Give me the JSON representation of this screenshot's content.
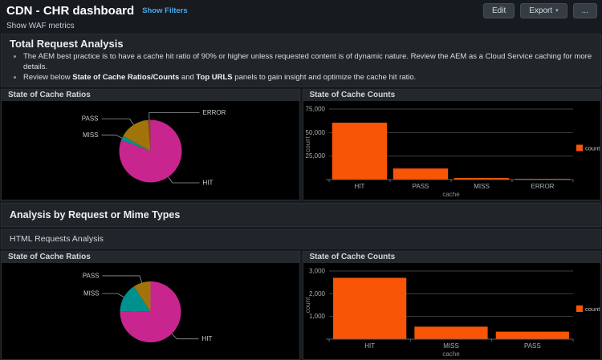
{
  "header": {
    "title": "CDN - CHR dashboard",
    "show_filters_label": "Show Filters",
    "waf_label": "Show WAF metrics",
    "buttons": {
      "edit": "Edit",
      "export": "Export",
      "more": "..."
    }
  },
  "sections": {
    "total_request": {
      "title": "Total Request Analysis",
      "bullets": [
        [
          {
            "text": "The AEM best practice is to have a cache hit ratio of 90% or higher unless requested content is of dynamic nature. Review the AEM as a Cloud Service caching for more details.",
            "bold": false
          }
        ],
        [
          {
            "text": "Review below ",
            "bold": false
          },
          {
            "text": "State of Cache Ratios/Counts",
            "bold": true
          },
          {
            "text": " and ",
            "bold": false
          },
          {
            "text": "Top URLS",
            "bold": true
          },
          {
            "text": " panels to gain insight and optimize the cache hit ratio.",
            "bold": false
          }
        ]
      ]
    },
    "mime_types": {
      "title": "Analysis by Request or Mime Types"
    },
    "html_requests": {
      "title": "HTML Requests Analysis"
    }
  },
  "panels": [
    {
      "title": "State of Cache Ratios"
    },
    {
      "title": "State of Cache Counts"
    },
    {
      "title": "State of Cache Ratios"
    },
    {
      "title": "State of Cache Counts"
    }
  ],
  "colors": {
    "bar_orange": "#f85506",
    "pie_hit_magenta": "#c9258f",
    "pie_miss_teal": "#00918e",
    "pie_pass_gold": "#a1730b",
    "pie_error_red": "#8f3e3e",
    "link_blue": "#4aa8e8"
  },
  "chart_data": [
    {
      "id": "pie1",
      "type": "pie",
      "title": "State of Cache Ratios",
      "labels": [
        "HIT",
        "MISS",
        "PASS",
        "ERROR"
      ],
      "values": [
        60500,
        1700,
        11800,
        900
      ],
      "colors": [
        "#c9258f",
        "#00918e",
        "#a1730b",
        "#8f3e3e"
      ]
    },
    {
      "id": "bar1",
      "type": "bar",
      "title": "State of Cache Counts",
      "categories": [
        "HIT",
        "PASS",
        "MISS",
        "ERROR"
      ],
      "values": [
        60500,
        11800,
        1700,
        900
      ],
      "ylim": [
        0,
        75000
      ],
      "yticks": [
        {
          "value": 25000,
          "label": "25,000"
        },
        {
          "value": 50000,
          "label": "50,000"
        },
        {
          "value": 75000,
          "label": "75,000"
        }
      ],
      "xlabel": "cache",
      "ylabel": "count",
      "legend": "count",
      "legend_position": "right",
      "grid": true,
      "bar_color": "#f85506"
    },
    {
      "id": "pie2",
      "type": "pie",
      "title": "State of Cache Ratios",
      "labels": [
        "HIT",
        "MISS",
        "PASS"
      ],
      "values": [
        2700,
        550,
        330
      ],
      "colors": [
        "#c9258f",
        "#00918e",
        "#a1730b"
      ]
    },
    {
      "id": "bar2",
      "type": "bar",
      "title": "State of Cache Counts",
      "categories": [
        "HIT",
        "MISS",
        "PASS"
      ],
      "values": [
        2700,
        550,
        330
      ],
      "ylim": [
        0,
        3000
      ],
      "yticks": [
        {
          "value": 1000,
          "label": "1,000"
        },
        {
          "value": 2000,
          "label": "2,000"
        },
        {
          "value": 3000,
          "label": "3,000"
        }
      ],
      "xlabel": "cache",
      "ylabel": "count",
      "legend": "count",
      "legend_position": "right",
      "grid": true,
      "bar_color": "#f85506"
    }
  ]
}
